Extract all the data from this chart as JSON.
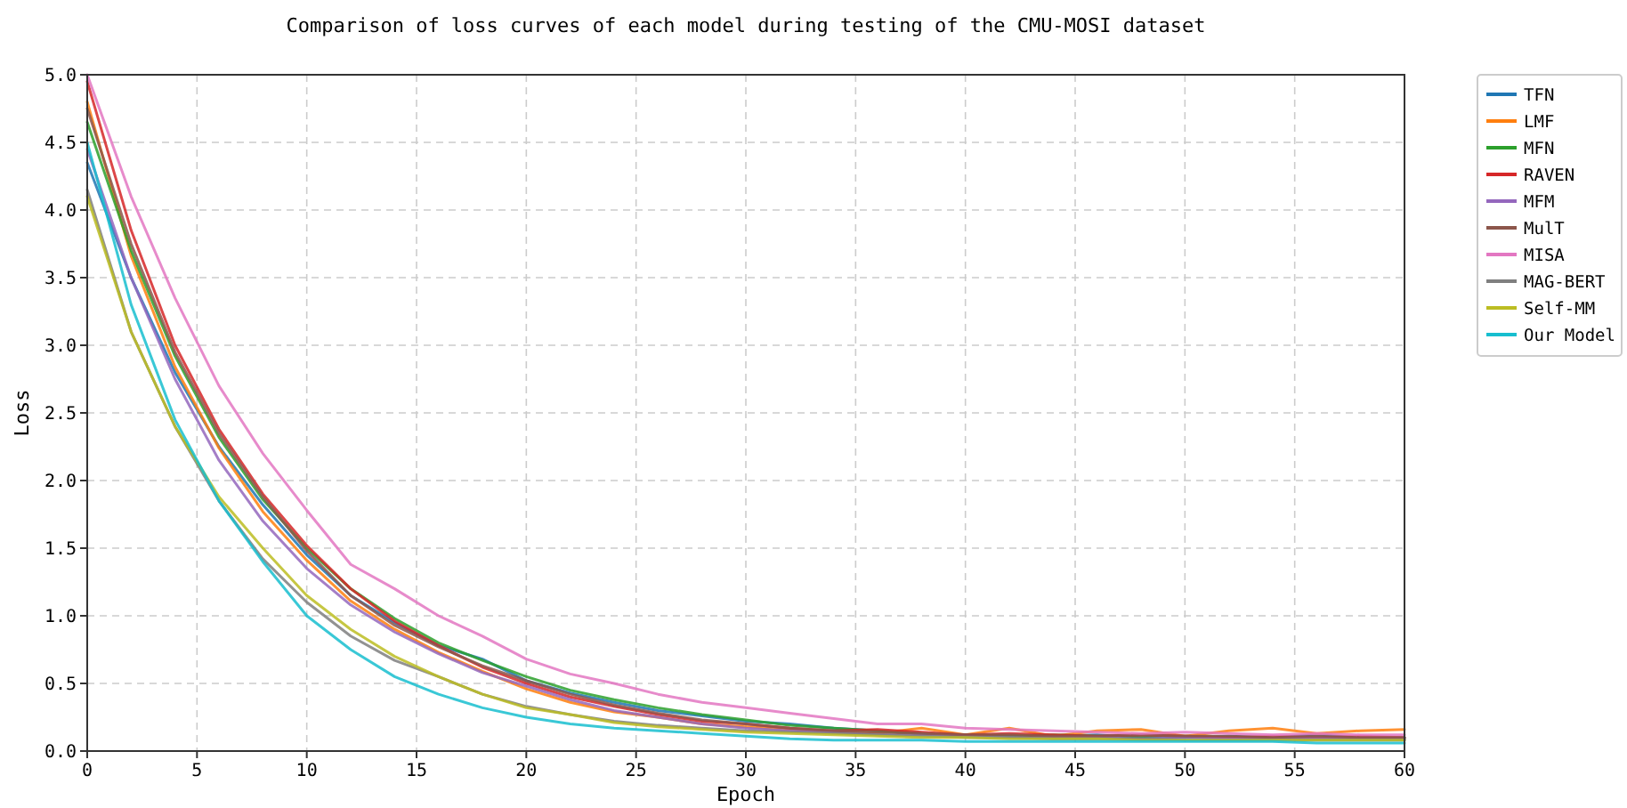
{
  "chart_data": {
    "type": "line",
    "title": "Comparison of loss curves of each model during testing of the CMU-MOSI dataset",
    "xlabel": "Epoch",
    "ylabel": "Loss",
    "x": [
      0,
      2,
      4,
      6,
      8,
      10,
      12,
      14,
      16,
      18,
      20,
      22,
      24,
      26,
      28,
      30,
      32,
      34,
      36,
      38,
      40,
      42,
      44,
      46,
      48,
      50,
      52,
      54,
      56,
      58,
      60
    ],
    "xlim": [
      0,
      60
    ],
    "xticks": [
      0,
      5,
      10,
      15,
      20,
      25,
      30,
      35,
      40,
      45,
      50,
      55,
      60
    ],
    "ylim": [
      0,
      5
    ],
    "yticks": [
      {
        "value": 0,
        "label": "0.0"
      },
      {
        "value": 0.5,
        "label": "0.5"
      },
      {
        "value": 1,
        "label": "1.0"
      },
      {
        "value": 1.5,
        "label": "1.5"
      },
      {
        "value": 2,
        "label": "2.0"
      },
      {
        "value": 2.5,
        "label": "2.5"
      },
      {
        "value": 3,
        "label": "3.0"
      },
      {
        "value": 3.5,
        "label": "3.5"
      },
      {
        "value": 4,
        "label": "4.0"
      },
      {
        "value": 4.5,
        "label": "4.5"
      },
      {
        "value": 5,
        "label": "5.0"
      }
    ],
    "grid": true,
    "legend": "top right",
    "line_style": "solid",
    "series": [
      {
        "name": "TFN",
        "color": "#1f77b4",
        "values": [
          4.35,
          3.5,
          2.8,
          2.25,
          1.82,
          1.45,
          1.15,
          0.95,
          0.78,
          0.68,
          0.52,
          0.43,
          0.36,
          0.3,
          0.26,
          0.22,
          0.2,
          0.17,
          0.15,
          0.13,
          0.12,
          0.11,
          0.11,
          0.12,
          0.1,
          0.1,
          0.11,
          0.1,
          0.12,
          0.1,
          0.1
        ]
      },
      {
        "name": "LMF",
        "color": "#ff7f0e",
        "values": [
          4.8,
          3.66,
          2.84,
          2.24,
          1.77,
          1.41,
          1.11,
          0.9,
          0.73,
          0.59,
          0.46,
          0.36,
          0.29,
          0.25,
          0.2,
          0.18,
          0.16,
          0.14,
          0.13,
          0.17,
          0.12,
          0.17,
          0.11,
          0.15,
          0.16,
          0.11,
          0.15,
          0.17,
          0.13,
          0.15,
          0.16
        ]
      },
      {
        "name": "MFN",
        "color": "#2ca02c",
        "values": [
          4.65,
          3.7,
          2.92,
          2.32,
          1.86,
          1.5,
          1.2,
          0.98,
          0.8,
          0.67,
          0.55,
          0.45,
          0.38,
          0.32,
          0.27,
          0.23,
          0.19,
          0.17,
          0.15,
          0.13,
          0.12,
          0.11,
          0.12,
          0.11,
          0.1,
          0.11,
          0.1,
          0.1,
          0.09,
          0.09,
          0.09
        ]
      },
      {
        "name": "RAVEN",
        "color": "#d62728",
        "values": [
          4.95,
          3.85,
          3.0,
          2.38,
          1.9,
          1.52,
          1.2,
          0.96,
          0.78,
          0.62,
          0.5,
          0.4,
          0.33,
          0.27,
          0.22,
          0.2,
          0.17,
          0.15,
          0.16,
          0.14,
          0.12,
          0.13,
          0.12,
          0.11,
          0.12,
          0.11,
          0.1,
          0.11,
          0.1,
          0.11,
          0.1
        ]
      },
      {
        "name": "MFM",
        "color": "#9467bd",
        "values": [
          4.45,
          3.5,
          2.75,
          2.15,
          1.7,
          1.35,
          1.08,
          0.88,
          0.72,
          0.58,
          0.48,
          0.38,
          0.3,
          0.25,
          0.2,
          0.17,
          0.15,
          0.14,
          0.12,
          0.12,
          0.11,
          0.1,
          0.1,
          0.1,
          0.09,
          0.1,
          0.09,
          0.09,
          0.1,
          0.09,
          0.09
        ]
      },
      {
        "name": "MulT",
        "color": "#8c564b",
        "values": [
          4.75,
          3.75,
          2.95,
          2.35,
          1.88,
          1.48,
          1.15,
          0.93,
          0.77,
          0.63,
          0.52,
          0.42,
          0.34,
          0.28,
          0.23,
          0.2,
          0.17,
          0.15,
          0.14,
          0.13,
          0.12,
          0.12,
          0.11,
          0.11,
          0.12,
          0.11,
          0.11,
          0.1,
          0.11,
          0.1,
          0.1
        ]
      },
      {
        "name": "MISA",
        "color": "#e377c2",
        "values": [
          5.0,
          4.1,
          3.35,
          2.7,
          2.2,
          1.78,
          1.38,
          1.2,
          1.0,
          0.85,
          0.68,
          0.57,
          0.5,
          0.42,
          0.36,
          0.32,
          0.28,
          0.24,
          0.2,
          0.2,
          0.17,
          0.16,
          0.15,
          0.14,
          0.13,
          0.14,
          0.13,
          0.12,
          0.13,
          0.12,
          0.12
        ]
      },
      {
        "name": "MAG-BERT",
        "color": "#7f7f7f",
        "values": [
          4.15,
          3.1,
          2.4,
          1.85,
          1.42,
          1.1,
          0.85,
          0.67,
          0.55,
          0.42,
          0.33,
          0.27,
          0.22,
          0.19,
          0.17,
          0.15,
          0.14,
          0.13,
          0.12,
          0.11,
          0.1,
          0.1,
          0.09,
          0.09,
          0.09,
          0.08,
          0.08,
          0.08,
          0.08,
          0.08,
          0.08
        ]
      },
      {
        "name": "Self-MM",
        "color": "#bcbd22",
        "values": [
          4.1,
          3.1,
          2.4,
          1.88,
          1.5,
          1.15,
          0.9,
          0.7,
          0.55,
          0.42,
          0.32,
          0.27,
          0.21,
          0.18,
          0.16,
          0.14,
          0.13,
          0.12,
          0.11,
          0.1,
          0.1,
          0.09,
          0.09,
          0.09,
          0.08,
          0.08,
          0.08,
          0.08,
          0.08,
          0.08,
          0.08
        ]
      },
      {
        "name": "Our Model",
        "color": "#17becf",
        "values": [
          4.5,
          3.3,
          2.45,
          1.85,
          1.4,
          1.0,
          0.75,
          0.55,
          0.42,
          0.32,
          0.25,
          0.2,
          0.17,
          0.15,
          0.13,
          0.11,
          0.09,
          0.08,
          0.08,
          0.08,
          0.07,
          0.07,
          0.07,
          0.07,
          0.07,
          0.07,
          0.07,
          0.07,
          0.06,
          0.06,
          0.06
        ]
      }
    ]
  }
}
